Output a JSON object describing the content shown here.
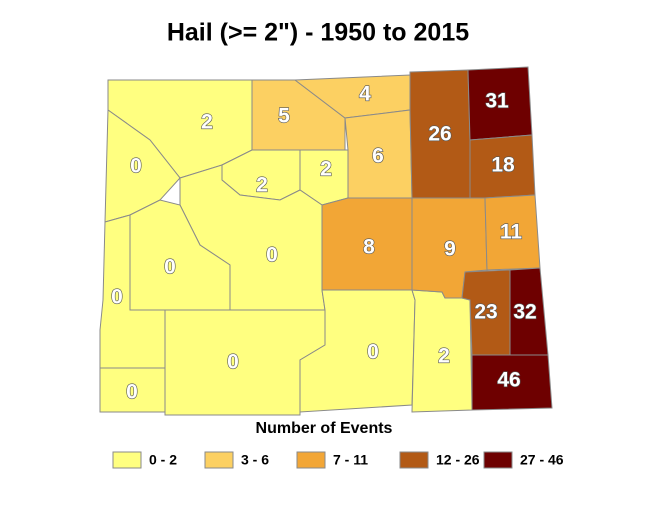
{
  "title": "Hail (>= 2\") - 1950 to 2015",
  "counties": [
    {
      "value": 2,
      "color": "#ffff80"
    },
    {
      "value": 0,
      "color": "#ffff80"
    },
    {
      "value": 5,
      "color": "#fcd062"
    },
    {
      "value": 4,
      "color": "#fcd062"
    },
    {
      "value": 6,
      "color": "#fcd062"
    },
    {
      "value": 26,
      "color": "#b25a16"
    },
    {
      "value": 31,
      "color": "#6e0000"
    },
    {
      "value": 18,
      "color": "#b25a16"
    },
    {
      "value": 2,
      "color": "#ffff80"
    },
    {
      "value": 2,
      "color": "#ffff80"
    },
    {
      "value": 0,
      "color": "#ffff80"
    },
    {
      "value": 0,
      "color": "#ffff80"
    },
    {
      "value": 0,
      "color": "#ffff80"
    },
    {
      "value": 0,
      "color": "#ffff80"
    },
    {
      "value": 0,
      "color": "#ffff80"
    },
    {
      "value": 0,
      "color": "#ffff80"
    },
    {
      "value": 2,
      "color": "#ffff80"
    },
    {
      "value": 8,
      "color": "#f2a636"
    },
    {
      "value": 9,
      "color": "#f2a636"
    },
    {
      "value": 11,
      "color": "#f2a636"
    },
    {
      "value": 23,
      "color": "#b25a16"
    },
    {
      "value": 32,
      "color": "#6e0000"
    },
    {
      "value": 46,
      "color": "#6e0000"
    }
  ],
  "legend": {
    "title": "Number of Events",
    "items": [
      {
        "label": "0 - 2",
        "color": "#ffff80"
      },
      {
        "label": "3 - 6",
        "color": "#fcd062"
      },
      {
        "label": "7 - 11",
        "color": "#f2a636"
      },
      {
        "label": "12 - 26",
        "color": "#b25a16"
      },
      {
        "label": "27 - 46",
        "color": "#6e0000"
      }
    ]
  }
}
